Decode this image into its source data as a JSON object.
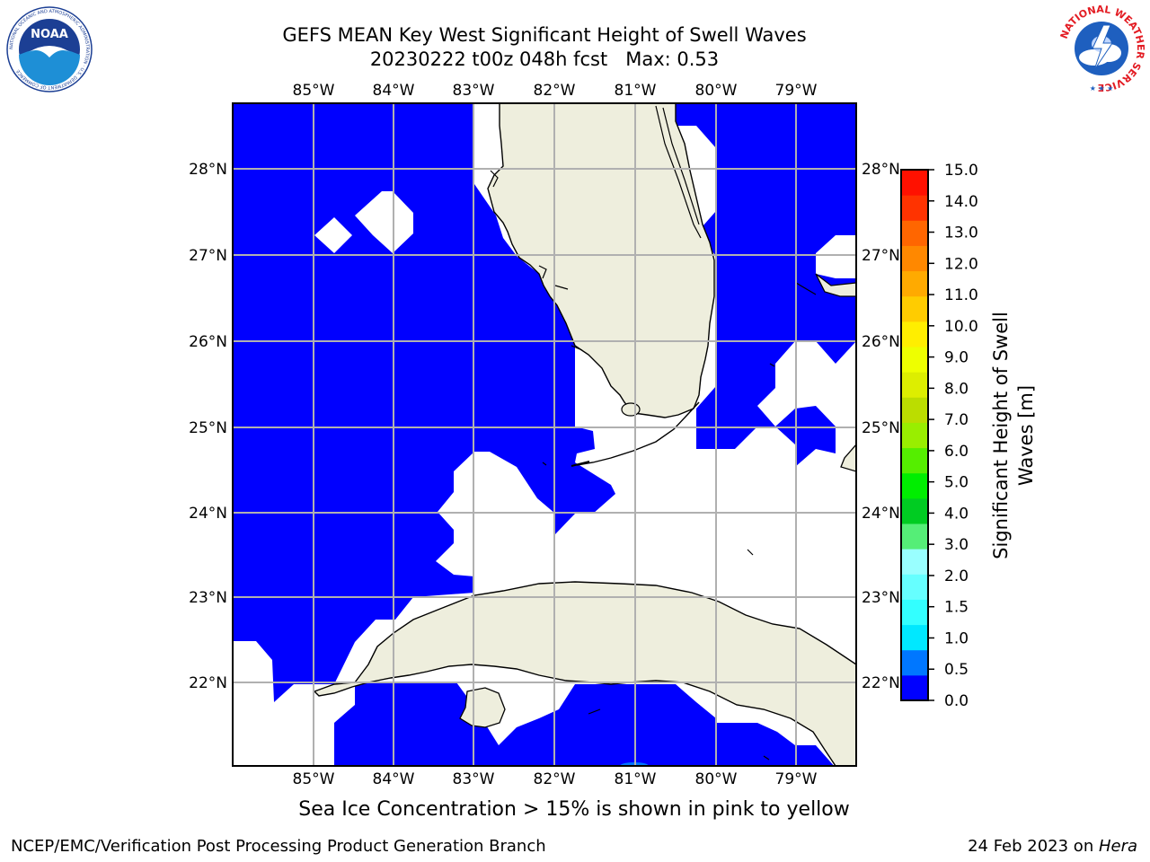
{
  "title": {
    "line1": "GEFS MEAN Key West Significant Height of Swell Waves",
    "line2": "20230222 t00z 048h fcst   Max: 0.53"
  },
  "map": {
    "lon_ticks": [
      "85°W",
      "84°W",
      "83°W",
      "82°W",
      "81°W",
      "80°W",
      "79°W"
    ],
    "lat_ticks": [
      "28°N",
      "27°N",
      "26°N",
      "25°N",
      "24°N",
      "23°N",
      "22°N"
    ],
    "lon_range": [
      -86.0,
      -78.3
    ],
    "lat_range": [
      21.0,
      28.8
    ],
    "colors": {
      "ocean_low": "#0000ff",
      "land": "#eeeedd",
      "no_data": "#ffffff",
      "grid": "#b0b0b0"
    }
  },
  "colorbar": {
    "label": "Significant Height of Swell Waves [m]",
    "ticks": [
      "15.0",
      "14.0",
      "13.0",
      "12.0",
      "11.0",
      "10.0",
      "9.0",
      "8.0",
      "7.0",
      "6.0",
      "5.0",
      "4.0",
      "3.0",
      "2.0",
      "1.5",
      "1.0",
      "0.5",
      "0.0"
    ],
    "colors": [
      "#0000ff",
      "#0077ff",
      "#00e8ff",
      "#33ffff",
      "#66ffff",
      "#99ffff",
      "#55ee77",
      "#00cc22",
      "#00ee00",
      "#55ee00",
      "#99ee00",
      "#bbdd00",
      "#ddee00",
      "#eeff00",
      "#ffee00",
      "#ffcc00",
      "#ffaa00",
      "#ff8800",
      "#ff6600",
      "#ff3300",
      "#ff1100"
    ]
  },
  "caption": "Sea Ice Concentration > 15% is shown in pink to yellow",
  "footer": {
    "left": "NCEP/EMC/Verification Post Processing Product Generation Branch",
    "right_date": "24 Feb 2023 on ",
    "right_host": "Hera"
  },
  "logos": {
    "noaa_text": "NOAA",
    "noaa_ring": "NATIONAL OCEANIC AND ATMOSPHERIC ADMINISTRATION · U.S. DEPARTMENT OF COMMERCE",
    "nws_ring": "NATIONAL WEATHER SERVICE"
  }
}
